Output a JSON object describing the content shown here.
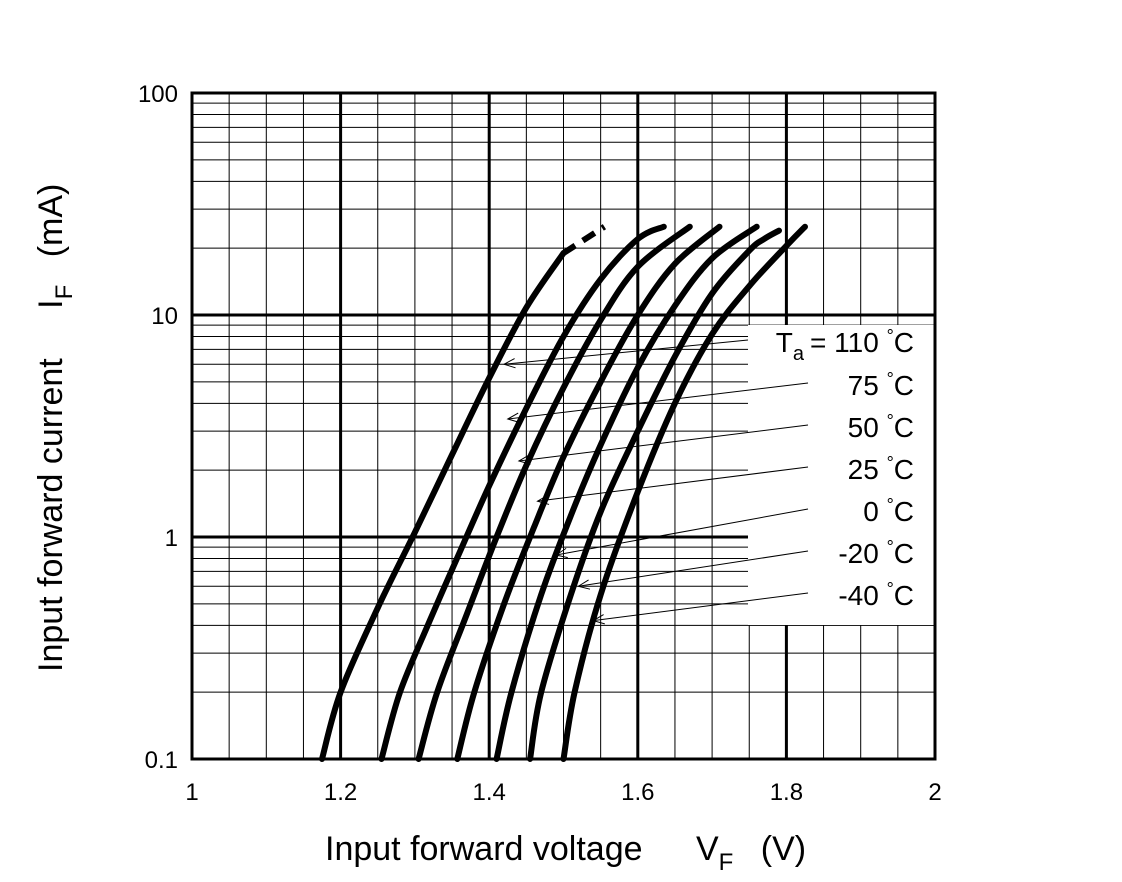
{
  "chart_data": {
    "type": "line",
    "xlabel": "Input forward voltage",
    "xsymbol": "V",
    "xsymbol_sub": "F",
    "xunit": "(V)",
    "ylabel": "Input forward current",
    "ysymbol": "I",
    "ysymbol_sub": "F",
    "yunit": "(mA)",
    "xlim": [
      1,
      2
    ],
    "ylim": [
      0.1,
      100
    ],
    "yscale": "log",
    "grid": true,
    "xticks": [
      "1",
      "1.2",
      "1.4",
      "1.6",
      "1.8",
      "2"
    ],
    "yticks": [
      "0.1",
      "1",
      "10",
      "100"
    ],
    "legend_prefix": "T",
    "legend_prefix_sub": "a",
    "legend_prefix_eq": "=",
    "series": [
      {
        "name": "110 °C",
        "points": [
          [
            1.175,
            0.1
          ],
          [
            1.2,
            0.2
          ],
          [
            1.25,
            0.48
          ],
          [
            1.3,
            1.05
          ],
          [
            1.35,
            2.35
          ],
          [
            1.4,
            5.2
          ],
          [
            1.45,
            10.8
          ],
          [
            1.5,
            19
          ],
          [
            1.555,
            25
          ]
        ],
        "dashed_from_x": 1.5
      },
      {
        "name": "75 °C",
        "points": [
          [
            1.255,
            0.1
          ],
          [
            1.28,
            0.2
          ],
          [
            1.32,
            0.42
          ],
          [
            1.36,
            0.85
          ],
          [
            1.4,
            1.7
          ],
          [
            1.45,
            3.8
          ],
          [
            1.5,
            8.0
          ],
          [
            1.55,
            14.5
          ],
          [
            1.6,
            22
          ],
          [
            1.635,
            25
          ]
        ]
      },
      {
        "name": "50 °C",
        "points": [
          [
            1.305,
            0.1
          ],
          [
            1.33,
            0.2
          ],
          [
            1.37,
            0.45
          ],
          [
            1.41,
            1.0
          ],
          [
            1.45,
            2.1
          ],
          [
            1.5,
            4.7
          ],
          [
            1.55,
            9.5
          ],
          [
            1.6,
            16.5
          ],
          [
            1.67,
            25
          ]
        ]
      },
      {
        "name": "25 °C",
        "points": [
          [
            1.357,
            0.1
          ],
          [
            1.38,
            0.2
          ],
          [
            1.42,
            0.5
          ],
          [
            1.46,
            1.1
          ],
          [
            1.5,
            2.3
          ],
          [
            1.55,
            5.0
          ],
          [
            1.6,
            10.0
          ],
          [
            1.65,
            17
          ],
          [
            1.71,
            25
          ]
        ]
      },
      {
        "name": "0 °C",
        "points": [
          [
            1.41,
            0.1
          ],
          [
            1.43,
            0.2
          ],
          [
            1.47,
            0.55
          ],
          [
            1.51,
            1.25
          ],
          [
            1.55,
            2.6
          ],
          [
            1.6,
            5.8
          ],
          [
            1.65,
            11
          ],
          [
            1.7,
            18
          ],
          [
            1.76,
            25
          ]
        ]
      },
      {
        "name": "-20 °C",
        "points": [
          [
            1.455,
            0.1
          ],
          [
            1.47,
            0.2
          ],
          [
            1.51,
            0.55
          ],
          [
            1.55,
            1.3
          ],
          [
            1.6,
            3.0
          ],
          [
            1.65,
            6.5
          ],
          [
            1.7,
            12.5
          ],
          [
            1.75,
            19.5
          ],
          [
            1.77,
            22
          ],
          [
            1.79,
            24
          ]
        ]
      },
      {
        "name": "-40 °C",
        "points": [
          [
            1.5,
            0.1
          ],
          [
            1.515,
            0.2
          ],
          [
            1.55,
            0.55
          ],
          [
            1.6,
            1.6
          ],
          [
            1.65,
            4.0
          ],
          [
            1.7,
            8.2
          ],
          [
            1.75,
            13.5
          ],
          [
            1.8,
            20.5
          ],
          [
            1.825,
            25
          ]
        ]
      }
    ]
  }
}
